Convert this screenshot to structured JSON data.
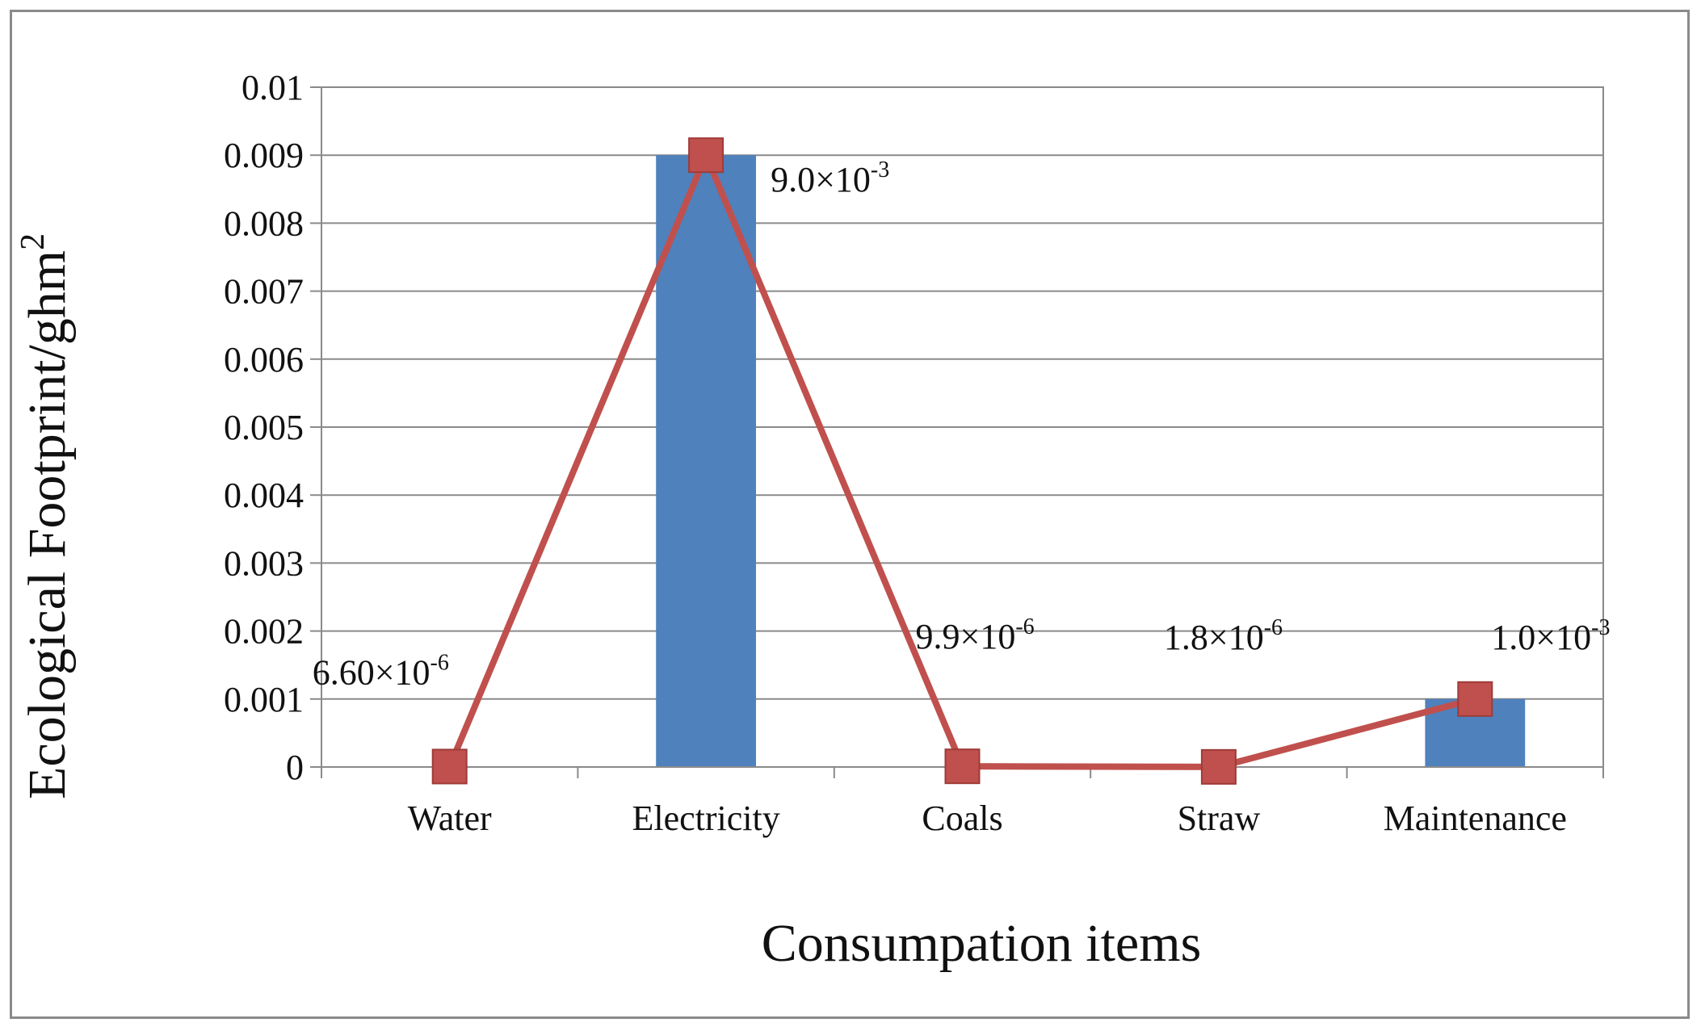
{
  "chart_data": {
    "type": "bar",
    "title": "",
    "xlabel": "Consumpation  items",
    "ylabel": "Ecological  Footprint/ghm",
    "ylabel_sup": "2",
    "ylim": [
      0,
      0.01
    ],
    "yticks": [
      "0",
      "0.001",
      "0.002",
      "0.003",
      "0.004",
      "0.005",
      "0.006",
      "0.007",
      "0.008",
      "0.009",
      "0.01"
    ],
    "categories": [
      "Water",
      "Electricity",
      "Coals",
      "Straw",
      "Maintenance"
    ],
    "series": [
      {
        "name": "bar",
        "kind": "bar",
        "color": "#4f81bd",
        "values": [
          6.6e-06,
          0.009,
          9.9e-06,
          1.8e-06,
          0.001
        ]
      },
      {
        "name": "line",
        "kind": "line",
        "color": "#c0504d",
        "values": [
          6.6e-06,
          0.009,
          9.9e-06,
          1.8e-06,
          0.001
        ]
      }
    ],
    "data_labels": [
      {
        "base": "6.60×10",
        "exp": "-6"
      },
      {
        "base": "9.0×10",
        "exp": "-3"
      },
      {
        "base": "9.9×10",
        "exp": "-6"
      },
      {
        "base": "1.8×10",
        "exp": "-6"
      },
      {
        "base": "1.0×10",
        "exp": "-3"
      }
    ],
    "grid": true
  }
}
